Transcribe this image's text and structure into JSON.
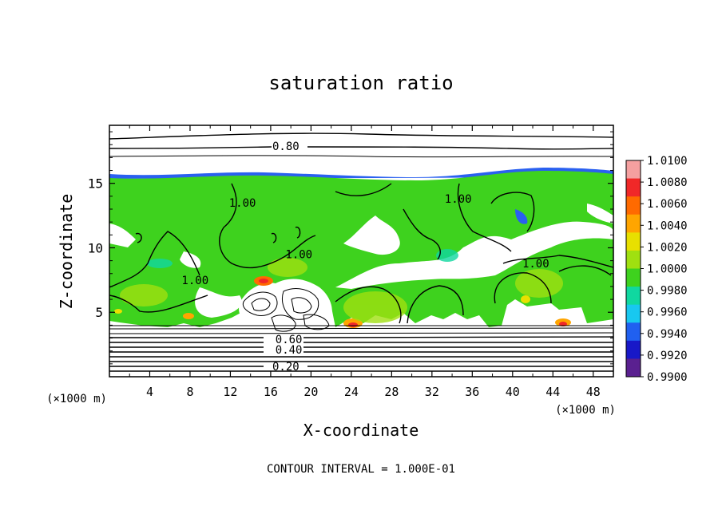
{
  "chart_data": {
    "type": "heatmap",
    "title": "saturation ratio",
    "xlabel": "X-coordinate",
    "ylabel": "Z-coordinate",
    "x_unit": "(×1000 m)",
    "z_unit": "(×1000 m)",
    "xlim": [
      0,
      50
    ],
    "ylim": [
      0,
      19.5
    ],
    "x_ticks": [
      4,
      8,
      12,
      16,
      20,
      24,
      28,
      32,
      36,
      40,
      44,
      48
    ],
    "y_ticks": [
      5,
      10,
      15
    ],
    "footer": "CONTOUR INTERVAL = 1.000E-01",
    "colorbar": {
      "ticks": [
        "1.0100",
        "1.0080",
        "1.0060",
        "1.0040",
        "1.0020",
        "1.0000",
        "0.9980",
        "0.9960",
        "0.9940",
        "0.9920",
        "0.9900"
      ],
      "colors": [
        "#f5a0a0",
        "#f02828",
        "#ff6a00",
        "#ffa500",
        "#e8e000",
        "#a0e010",
        "#3ed21e",
        "#10d8a0",
        "#18c8f0",
        "#2060f0",
        "#1818c8",
        "#5a2090"
      ]
    },
    "contour_labels": [
      {
        "text": "0.80",
        "x": 17.5,
        "z": 17.9
      },
      {
        "text": "0.60",
        "x": 17.8,
        "z": 2.9
      },
      {
        "text": "0.40",
        "x": 17.8,
        "z": 2.1
      },
      {
        "text": "0.20",
        "x": 17.5,
        "z": 0.8
      },
      {
        "text": "1.00",
        "x": 8.5,
        "z": 7.5
      },
      {
        "text": "1.00",
        "x": 13.2,
        "z": 13.5
      },
      {
        "text": "1.00",
        "x": 18.8,
        "z": 9.5
      },
      {
        "text": "1.00",
        "x": 34.6,
        "z": 13.8
      },
      {
        "text": "1.00",
        "x": 42.3,
        "z": 8.8
      }
    ]
  }
}
